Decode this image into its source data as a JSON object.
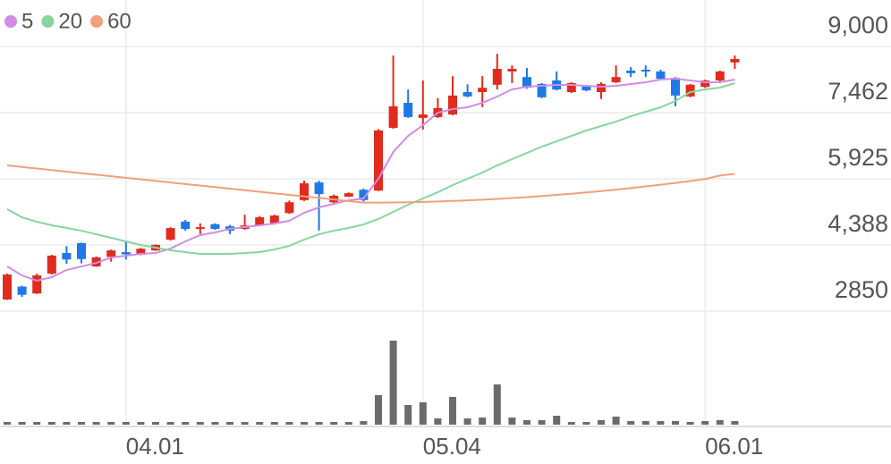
{
  "chart_data": {
    "type": "candlestick",
    "categories": [
      null,
      null,
      null,
      null,
      null,
      null,
      null,
      null,
      "04.01",
      null,
      null,
      null,
      null,
      null,
      null,
      null,
      null,
      null,
      null,
      null,
      null,
      null,
      null,
      null,
      null,
      null,
      null,
      null,
      "05.04",
      null,
      null,
      null,
      null,
      null,
      null,
      null,
      null,
      null,
      null,
      null,
      null,
      null,
      null,
      null,
      null,
      null,
      null,
      "06.01",
      null,
      null
    ],
    "open": [
      3120,
      3420,
      3260,
      3720,
      4200,
      4430,
      3890,
      4110,
      4220,
      4160,
      4260,
      4510,
      4930,
      4760,
      4870,
      4820,
      4760,
      4840,
      4890,
      5130,
      5430,
      5840,
      5380,
      5510,
      5670,
      5650,
      7110,
      7690,
      7340,
      7360,
      7420,
      7940,
      7940,
      8110,
      8420,
      8290,
      8130,
      8210,
      7940,
      8070,
      7940,
      8170,
      8440,
      8460,
      8420,
      8270,
      7840,
      8060,
      8210,
      8630
    ],
    "high": [
      3720,
      3440,
      3720,
      4160,
      4360,
      4440,
      4120,
      4280,
      4470,
      4320,
      4400,
      4800,
      4970,
      4890,
      4890,
      4850,
      5090,
      5060,
      5090,
      5420,
      5880,
      5880,
      5560,
      5610,
      5700,
      7080,
      8790,
      8000,
      8210,
      7800,
      8310,
      8120,
      8310,
      8830,
      8560,
      8500,
      8150,
      8420,
      8170,
      8090,
      8170,
      8560,
      8520,
      8560,
      8460,
      8290,
      8130,
      8230,
      8440,
      8790
    ],
    "low": [
      3110,
      3180,
      3250,
      3700,
      3950,
      3960,
      3880,
      4000,
      4050,
      4150,
      4250,
      4490,
      4720,
      4640,
      4740,
      4640,
      4740,
      4830,
      4860,
      5110,
      5410,
      4720,
      5350,
      5500,
      5400,
      5640,
      7090,
      7340,
      7070,
      7340,
      7400,
      7820,
      7590,
      8000,
      8150,
      8020,
      7800,
      7980,
      7920,
      7960,
      7780,
      8150,
      8290,
      8290,
      8230,
      7610,
      7820,
      8040,
      8190,
      8480
    ],
    "close": [
      3700,
      3230,
      3680,
      4140,
      4050,
      4060,
      4100,
      4260,
      4170,
      4300,
      4390,
      4780,
      4760,
      4800,
      4760,
      4720,
      4840,
      5030,
      5070,
      5380,
      5820,
      5570,
      5530,
      5590,
      5430,
      7050,
      7610,
      7360,
      7420,
      7570,
      7860,
      7840,
      8040,
      8480,
      8480,
      8040,
      7820,
      8000,
      8150,
      7980,
      8130,
      8290,
      8380,
      8420,
      8250,
      7860,
      8110,
      8210,
      8420,
      8710
    ],
    "volume": [
      3,
      3,
      3,
      3,
      3,
      3,
      3,
      3,
      3,
      3,
      3,
      3,
      3,
      3,
      3,
      3,
      3,
      3,
      3,
      3,
      3,
      3,
      3,
      3,
      4,
      33,
      94,
      22,
      25,
      7,
      31,
      7,
      8,
      45,
      8,
      5,
      5,
      10,
      3,
      3,
      5,
      9,
      4,
      4,
      4,
      4,
      3,
      4,
      5,
      4
    ],
    "up_color": "#e02b1d",
    "down_color": "#1e78e6",
    "volume_color": "#6b6b6b",
    "series": [
      {
        "name": "5",
        "color": "#d28ce6",
        "values": [
          3888,
          3680,
          3556,
          3639,
          3805,
          3888,
          3971,
          4096,
          4138,
          4179,
          4200,
          4304,
          4470,
          4616,
          4678,
          4761,
          4803,
          4844,
          4886,
          4948,
          5135,
          5260,
          5343,
          5426,
          5468,
          5925,
          6549,
          6922,
          7171,
          7462,
          7545,
          7587,
          7691,
          7836,
          8003,
          8065,
          8086,
          8106,
          8106,
          8086,
          8065,
          8086,
          8127,
          8169,
          8231,
          8252,
          8210,
          8169,
          8169,
          8231
        ]
      },
      {
        "name": "20",
        "color": "#86d6a0",
        "values": [
          5218,
          5031,
          4927,
          4844,
          4782,
          4719,
          4636,
          4553,
          4470,
          4387,
          4325,
          4262,
          4221,
          4179,
          4179,
          4179,
          4200,
          4221,
          4283,
          4366,
          4512,
          4636,
          4719,
          4782,
          4865,
          4990,
          5156,
          5322,
          5468,
          5613,
          5779,
          5925,
          6070,
          6236,
          6382,
          6527,
          6673,
          6797,
          6922,
          7047,
          7151,
          7254,
          7379,
          7483,
          7587,
          7732,
          7940,
          8003,
          8044,
          8148
        ]
      },
      {
        "name": "60",
        "color": "#f0a07a",
        "values": [
          6236,
          6200,
          6164,
          6128,
          6092,
          6056,
          6020,
          5984,
          5948,
          5912,
          5876,
          5840,
          5804,
          5768,
          5732,
          5696,
          5660,
          5624,
          5588,
          5552,
          5516,
          5480,
          5444,
          5408,
          5372,
          5372,
          5375,
          5380,
          5388,
          5398,
          5410,
          5424,
          5440,
          5458,
          5478,
          5500,
          5524,
          5550,
          5578,
          5608,
          5640,
          5674,
          5710,
          5748,
          5788,
          5830,
          5874,
          5920,
          6000,
          6040
        ]
      }
    ],
    "ylim": [
      2850,
      9000
    ],
    "yticks": [
      2850,
      {
        "value": 4388,
        "label": "4,388"
      },
      {
        "value": 5925,
        "label": "5,925"
      },
      {
        "value": 7462,
        "label": "7,462"
      },
      {
        "value": 9000,
        "label": "9,000"
      }
    ],
    "volume_ylim": [
      0,
      100
    ],
    "grid": true
  }
}
